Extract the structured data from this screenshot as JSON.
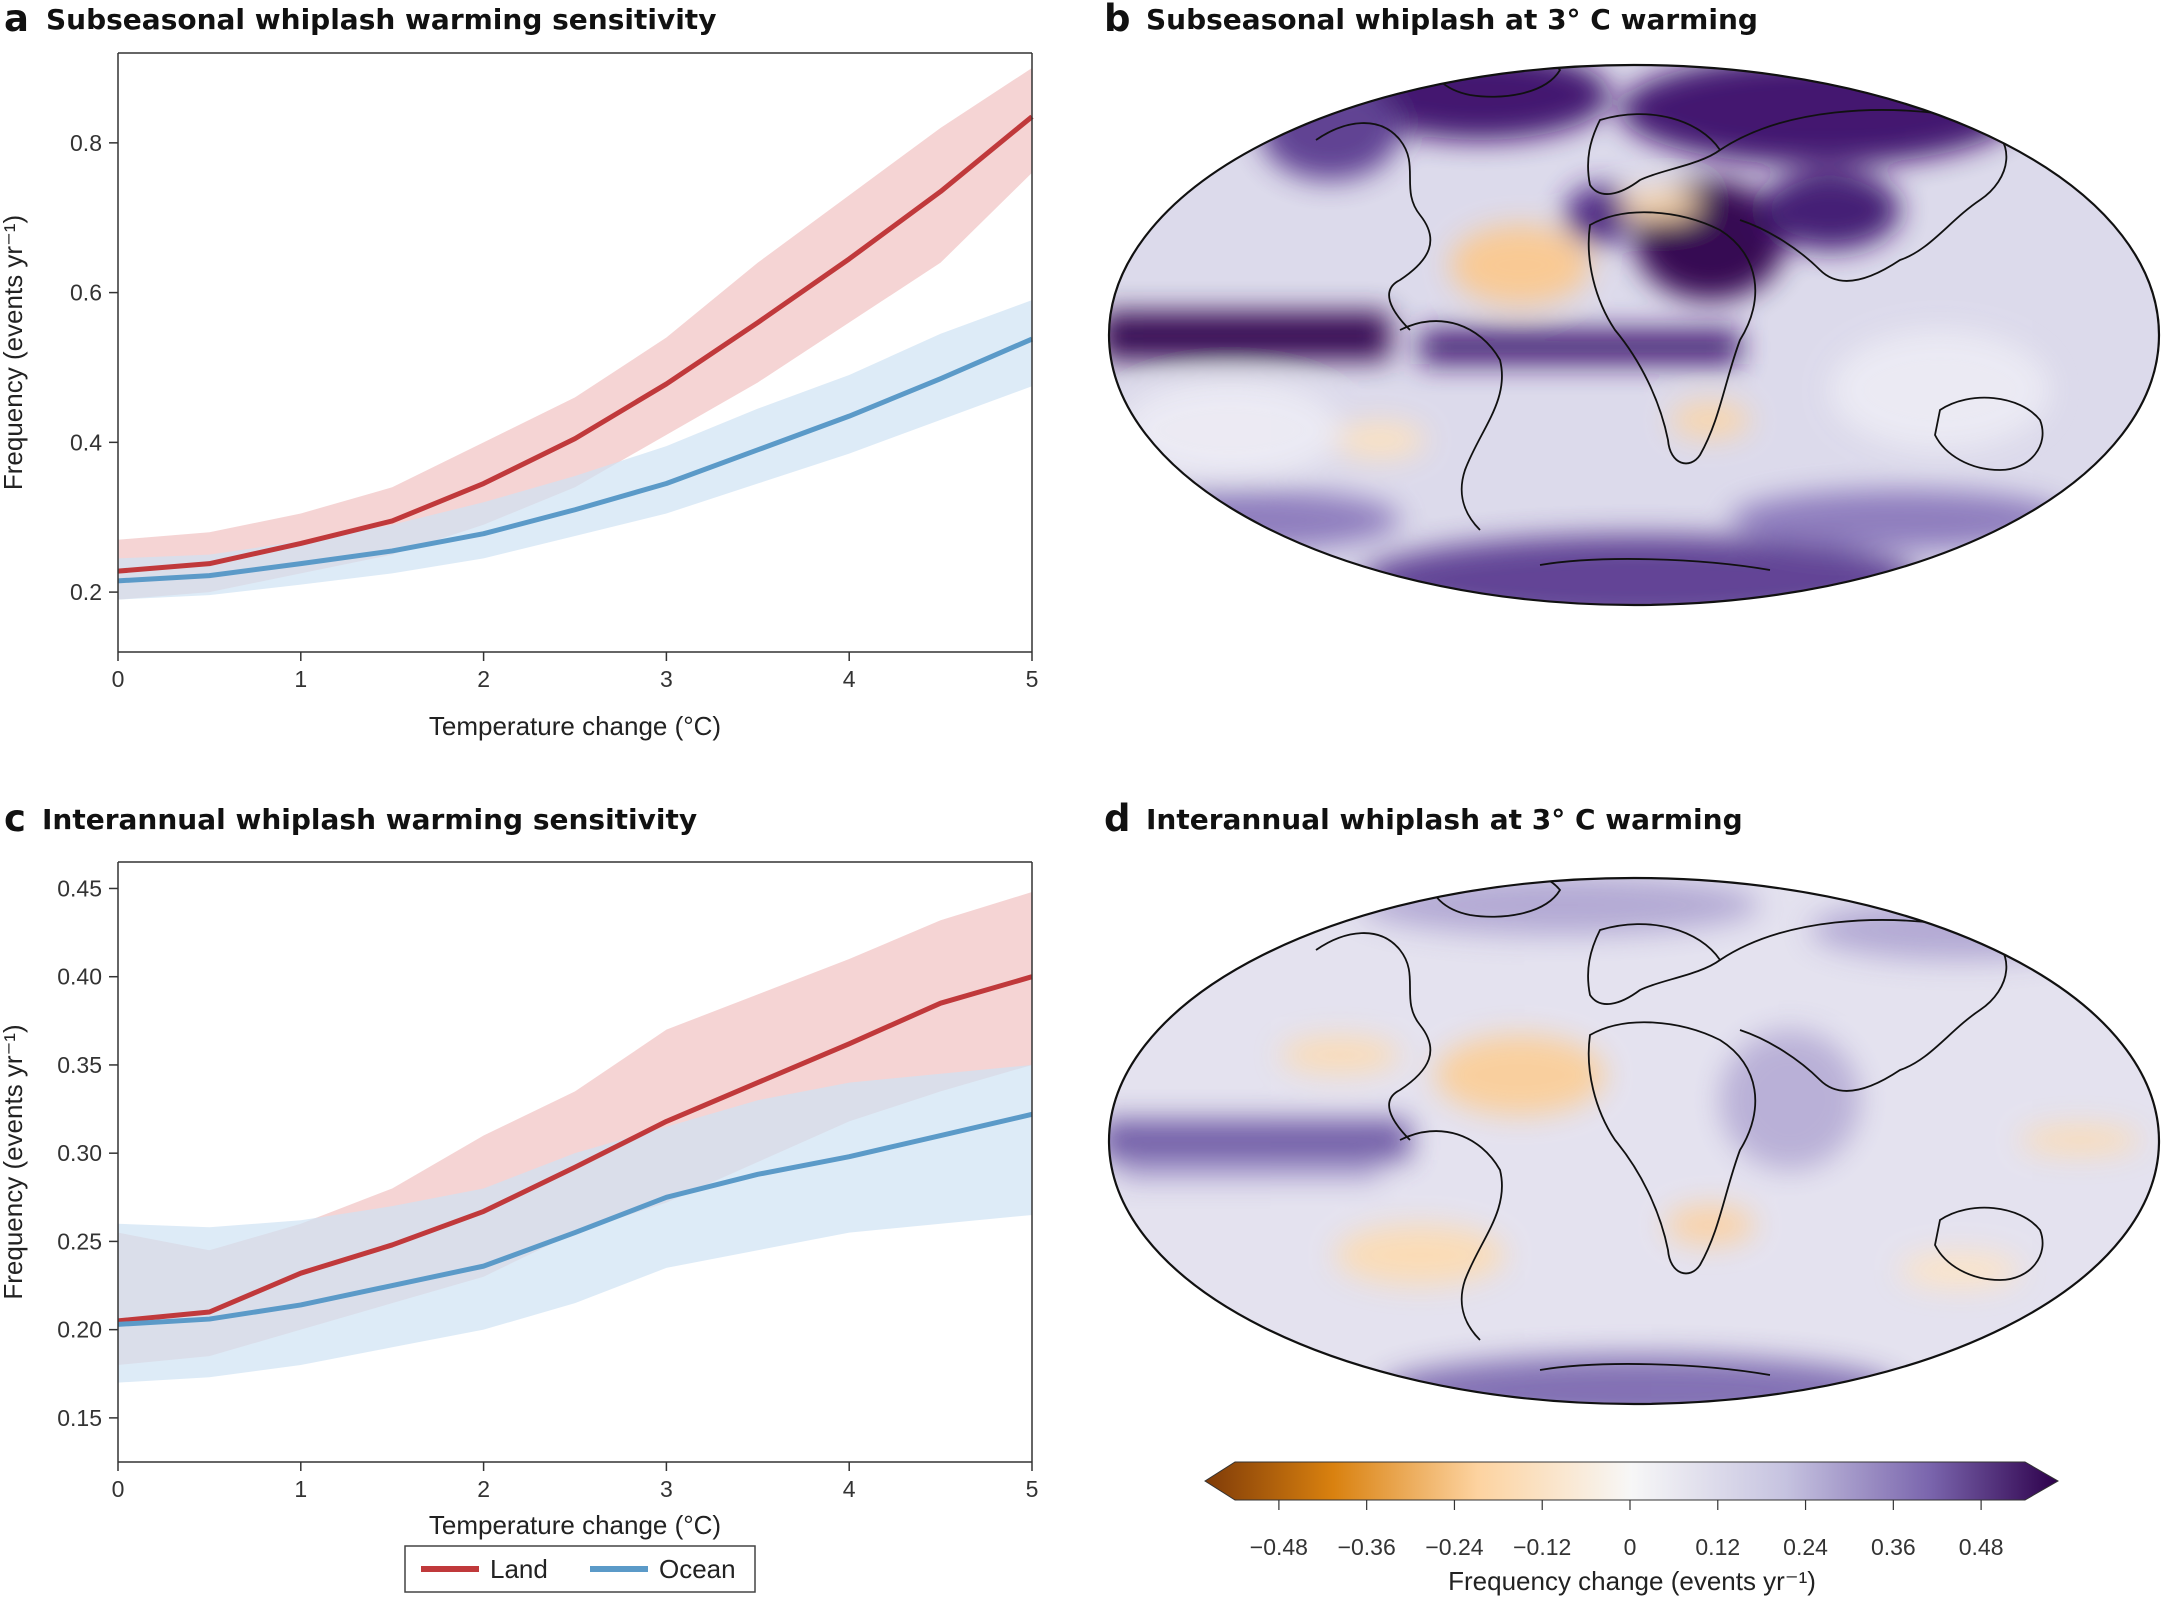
{
  "panels": {
    "a": {
      "letter": "a",
      "title": "Subseasonal whiplash warming sensitivity"
    },
    "b": {
      "letter": "b",
      "title": "Subseasonal whiplash at 3° C warming"
    },
    "c": {
      "letter": "c",
      "title": "Interannual whiplash warming sensitivity"
    },
    "d": {
      "letter": "d",
      "title": "Interannual whiplash at 3° C warming"
    }
  },
  "legend": {
    "land": "Land",
    "ocean": "Ocean"
  },
  "colorbar": {
    "label": "Frequency change (events yr⁻¹)",
    "ticks": [
      "−0.48",
      "−0.36",
      "−0.24",
      "−0.12",
      "0",
      "0.12",
      "0.24",
      "0.36",
      "0.48"
    ],
    "range": [
      -0.54,
      0.54
    ],
    "colors": {
      "negative": "#7f3b08",
      "mid": "#f7f7f7",
      "positive": "#2d004b"
    }
  },
  "colors": {
    "land": "#c0393b",
    "land_band": "#f2c5c5",
    "ocean": "#5b9ac8",
    "ocean_band": "#cfe2f3"
  },
  "chart_data": [
    {
      "type": "line",
      "title": "Subseasonal whiplash warming sensitivity",
      "xlabel": "Temperature change (°C)",
      "ylabel": "Frequency (events yr⁻¹)",
      "xlim": [
        0,
        5
      ],
      "ylim": [
        0.12,
        0.92
      ],
      "xticks": [
        "0",
        "1",
        "2",
        "3",
        "4",
        "5"
      ],
      "yticks": [
        "0.2",
        "0.4",
        "0.6",
        "0.8"
      ],
      "x": [
        0,
        0.5,
        1,
        1.5,
        2,
        2.5,
        3,
        3.5,
        4,
        4.5,
        5
      ],
      "series": [
        {
          "name": "Land",
          "values": [
            0.228,
            0.238,
            0.265,
            0.295,
            0.345,
            0.405,
            0.478,
            0.56,
            0.645,
            0.735,
            0.835
          ],
          "lower": [
            0.19,
            0.2,
            0.225,
            0.25,
            0.29,
            0.34,
            0.41,
            0.48,
            0.56,
            0.64,
            0.76
          ],
          "upper": [
            0.27,
            0.28,
            0.305,
            0.34,
            0.4,
            0.46,
            0.54,
            0.64,
            0.73,
            0.82,
            0.9
          ]
        },
        {
          "name": "Ocean",
          "values": [
            0.215,
            0.222,
            0.238,
            0.255,
            0.278,
            0.31,
            0.345,
            0.39,
            0.435,
            0.485,
            0.538
          ],
          "lower": [
            0.19,
            0.196,
            0.21,
            0.225,
            0.245,
            0.275,
            0.305,
            0.345,
            0.385,
            0.43,
            0.475
          ],
          "upper": [
            0.245,
            0.25,
            0.268,
            0.29,
            0.32,
            0.355,
            0.395,
            0.445,
            0.49,
            0.545,
            0.59
          ]
        }
      ]
    },
    {
      "type": "line",
      "title": "Interannual whiplash warming sensitivity",
      "xlabel": "Temperature change (°C)",
      "ylabel": "Frequency (events yr⁻¹)",
      "xlim": [
        0,
        5
      ],
      "ylim": [
        0.125,
        0.465
      ],
      "xticks": [
        "0",
        "1",
        "2",
        "3",
        "4",
        "5"
      ],
      "yticks": [
        "0.15",
        "0.20",
        "0.25",
        "0.30",
        "0.35",
        "0.40",
        "0.45"
      ],
      "x": [
        0,
        0.5,
        1,
        1.5,
        2,
        2.5,
        3,
        3.5,
        4,
        4.5,
        5
      ],
      "series": [
        {
          "name": "Land",
          "values": [
            0.205,
            0.21,
            0.232,
            0.248,
            0.267,
            0.292,
            0.318,
            0.34,
            0.362,
            0.385,
            0.4
          ],
          "lower": [
            0.18,
            0.185,
            0.2,
            0.215,
            0.23,
            0.255,
            0.272,
            0.295,
            0.318,
            0.335,
            0.35
          ],
          "upper": [
            0.255,
            0.245,
            0.26,
            0.28,
            0.31,
            0.335,
            0.37,
            0.39,
            0.41,
            0.432,
            0.448
          ]
        },
        {
          "name": "Ocean",
          "values": [
            0.203,
            0.206,
            0.214,
            0.225,
            0.236,
            0.255,
            0.275,
            0.288,
            0.298,
            0.31,
            0.322
          ],
          "lower": [
            0.17,
            0.173,
            0.18,
            0.19,
            0.2,
            0.215,
            0.235,
            0.245,
            0.255,
            0.26,
            0.265
          ],
          "upper": [
            0.26,
            0.258,
            0.262,
            0.27,
            0.28,
            0.3,
            0.315,
            0.33,
            0.34,
            0.345,
            0.35
          ]
        }
      ]
    }
  ]
}
